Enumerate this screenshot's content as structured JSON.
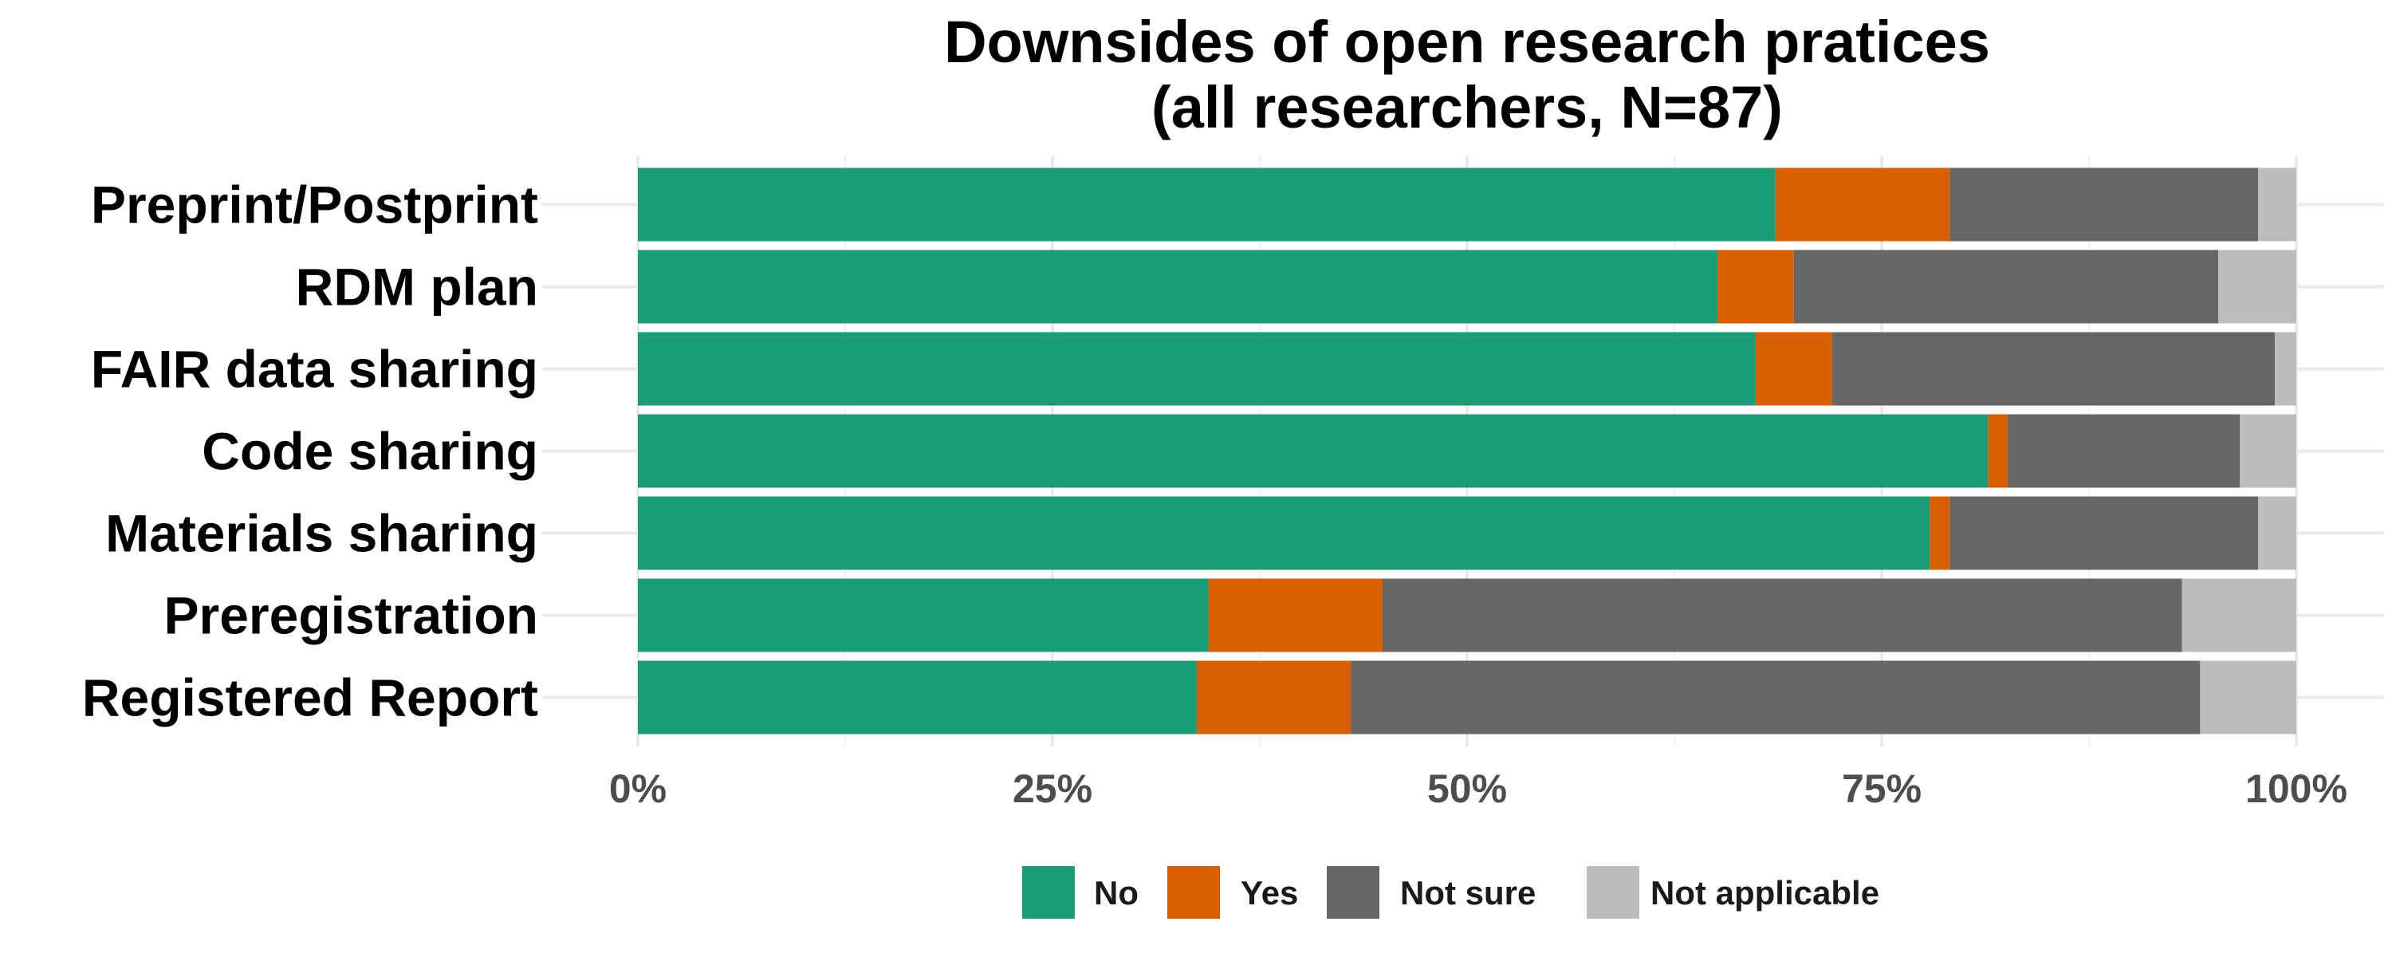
{
  "chart_data": {
    "type": "bar",
    "orientation": "horizontal",
    "stacked": true,
    "normalized": true,
    "title": "Downsides of open research pratices",
    "subtitle": "(all researchers, N=87)",
    "xlabel": "",
    "ylabel": "",
    "xlim": [
      0,
      100
    ],
    "x_ticks": [
      "0%",
      "25%",
      "50%",
      "75%",
      "100%"
    ],
    "grid": true,
    "legend_position": "bottom",
    "categories": [
      "Preprint/Postprint",
      "RDM plan",
      "FAIR data sharing",
      "Code sharing",
      "Materials sharing",
      "Preregistration",
      "Registered Report"
    ],
    "series": [
      {
        "name": "No",
        "color": "#1b9e77",
        "values": [
          68.6,
          65.1,
          67.4,
          81.4,
          77.9,
          34.4,
          33.7
        ]
      },
      {
        "name": "Yes",
        "color": "#d95f02",
        "values": [
          10.5,
          4.6,
          4.6,
          1.2,
          1.2,
          10.5,
          9.3
        ]
      },
      {
        "name": "Not sure",
        "color": "#666666",
        "values": [
          18.6,
          25.6,
          26.7,
          14.0,
          18.6,
          48.2,
          51.2
        ]
      },
      {
        "name": "Not applicable",
        "color": "#bdbdbd",
        "values": [
          2.3,
          4.7,
          1.3,
          3.4,
          2.3,
          6.9,
          5.8
        ]
      }
    ]
  }
}
